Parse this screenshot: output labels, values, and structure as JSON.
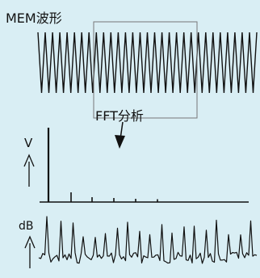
{
  "labels": {
    "waveform": "MEM波形",
    "fft": "FFT分析",
    "v_axis": "V",
    "db_axis": "dB"
  },
  "colors": {
    "background": "#d9eef4",
    "ink": "#111111",
    "frame": "#777777"
  },
  "icons": {
    "arrow_down": "arrow-down-icon",
    "arrow_up": "arrow-up-icon"
  }
}
